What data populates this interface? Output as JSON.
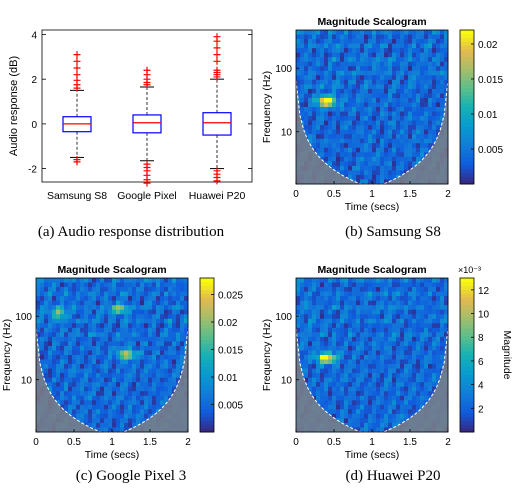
{
  "captions": {
    "a": "(a)  Audio response distribution",
    "b": "(b)  Samsung S8",
    "c": "(c)  Google Pixel 3",
    "d": "(d)  Huawei P20"
  },
  "colors": {
    "box_edge": "#0000ff",
    "median": "#ff0000",
    "outlier": "#ff0000",
    "whisker": "#000000",
    "cone": "#7d7f85",
    "cone_edge": "#ffffff"
  },
  "chart_data": [
    {
      "type": "box",
      "ylabel": "Audio response (dB)",
      "ylim": [
        -2.6,
        4.2
      ],
      "yticks": [
        "-2",
        "0",
        "2",
        "4"
      ],
      "categories": [
        "Samsung S8",
        "Google Pixel",
        "Huawei P20"
      ],
      "boxes": [
        {
          "q1": -0.35,
          "median": 0.0,
          "q3": 0.32,
          "whisker_low": -1.5,
          "whisker_high": 1.5,
          "outliers": [
            3.1,
            2.8,
            2.5,
            2.2,
            1.95,
            1.75,
            1.6,
            -1.6,
            -1.7
          ]
        },
        {
          "q1": -0.4,
          "median": 0.05,
          "q3": 0.4,
          "whisker_low": -1.65,
          "whisker_high": 1.65,
          "outliers": [
            2.4,
            2.2,
            2.0,
            1.85,
            1.75,
            -1.8,
            -1.95,
            -2.1,
            -2.3,
            -2.5,
            -2.65
          ]
        },
        {
          "q1": -0.5,
          "median": 0.05,
          "q3": 0.5,
          "whisker_low": -2.0,
          "whisker_high": 2.0,
          "outliers": [
            3.9,
            3.7,
            3.4,
            3.1,
            2.8,
            2.4,
            2.3,
            2.2,
            2.1,
            -2.1,
            -2.25,
            -2.4,
            -2.55
          ]
        }
      ]
    },
    {
      "type": "heatmap",
      "title": "Magnitude Scalogram",
      "xlabel": "Time (secs)",
      "ylabel": "Frequency (Hz)",
      "xlim": [
        0,
        2
      ],
      "xticks": [
        "0",
        "0.5",
        "1",
        "1.5",
        "2"
      ],
      "yticks": [
        "10",
        "100"
      ],
      "colorbar_ticks": [
        "0.005",
        "0.01",
        "0.015",
        "0.02"
      ],
      "colorbar_range": [
        0,
        0.022
      ],
      "hotspots": [
        {
          "t": 0.4,
          "f": 30,
          "level": 0.95
        }
      ]
    },
    {
      "type": "heatmap",
      "title": "Magnitude Scalogram",
      "xlabel": "Time (secs)",
      "ylabel": "Frequency (Hz)",
      "xlim": [
        0,
        2
      ],
      "xticks": [
        "0",
        "0.5",
        "1",
        "1.5",
        "2"
      ],
      "yticks": [
        "10",
        "100"
      ],
      "colorbar_ticks": [
        "0.005",
        "0.01",
        "0.015",
        "0.02",
        "0.025"
      ],
      "colorbar_range": [
        0,
        0.028
      ],
      "hotspots": [
        {
          "t": 1.2,
          "f": 25,
          "level": 0.7
        },
        {
          "t": 0.3,
          "f": 110,
          "level": 0.5
        },
        {
          "t": 1.1,
          "f": 130,
          "level": 0.5
        }
      ]
    },
    {
      "type": "heatmap",
      "title": "Magnitude Scalogram",
      "xlabel": "Time (secs)",
      "ylabel": "Frequency (Hz)",
      "xlim": [
        0,
        2
      ],
      "xticks": [
        "0",
        "0.5",
        "1",
        "1.5",
        "2"
      ],
      "yticks": [
        "10",
        "100"
      ],
      "colorbar_label": "Magnitude",
      "colorbar_exponent": "×10⁻³",
      "colorbar_ticks": [
        "2",
        "4",
        "6",
        "8",
        "10",
        "12"
      ],
      "colorbar_range": [
        0,
        13
      ],
      "hotspots": [
        {
          "t": 0.4,
          "f": 22,
          "level": 0.95
        }
      ]
    }
  ]
}
